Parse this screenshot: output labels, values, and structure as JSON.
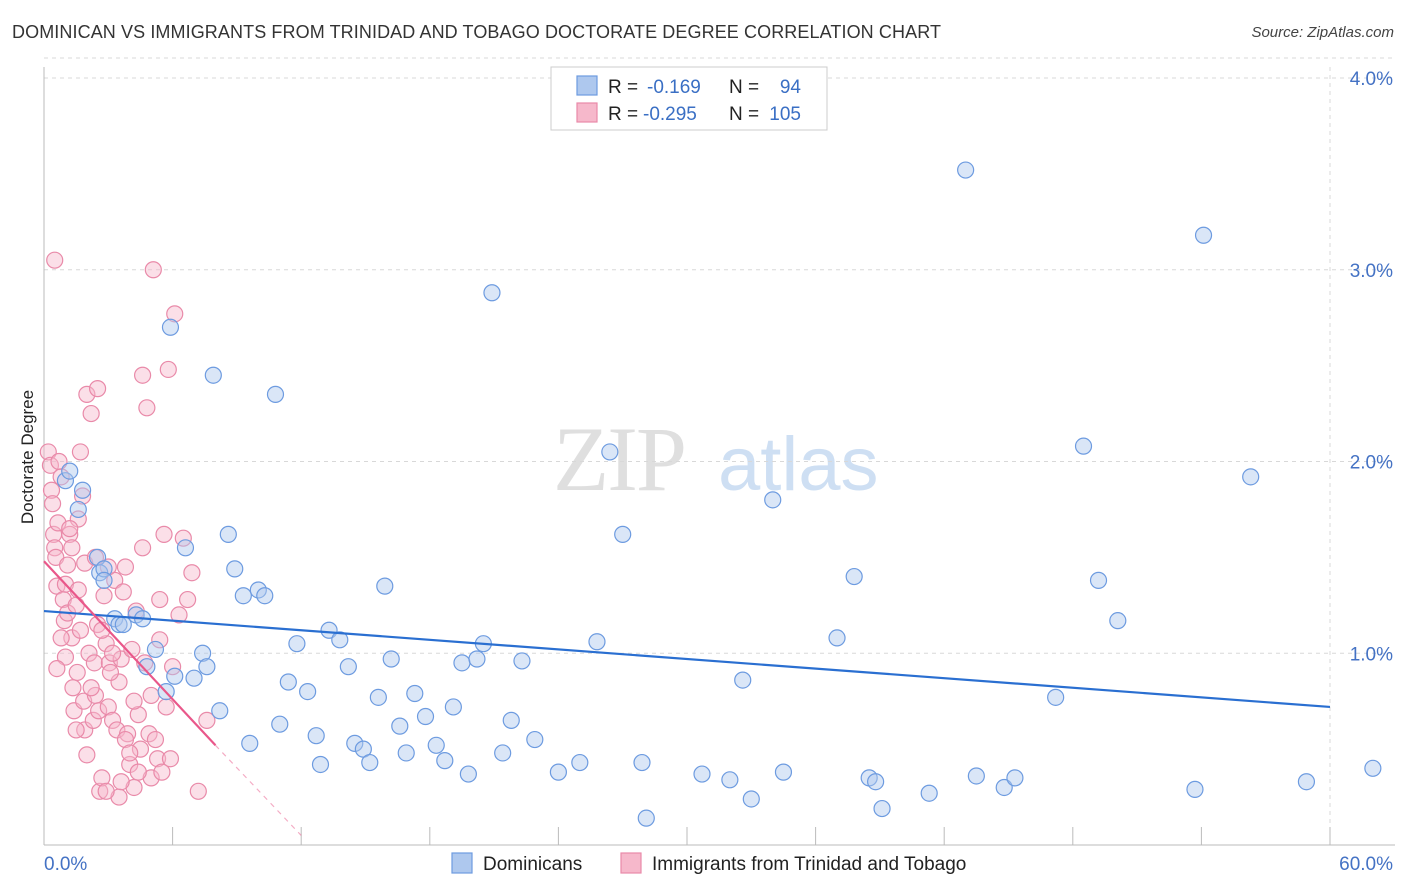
{
  "header": {
    "title": "DOMINICAN VS IMMIGRANTS FROM TRINIDAD AND TOBAGO DOCTORATE DEGREE CORRELATION CHART",
    "source": "Source: ZipAtlas.com"
  },
  "watermark": {
    "zip": "ZIP",
    "atlas": "atlas"
  },
  "colors": {
    "blue_fill": "#aec8ee",
    "blue_stroke": "#6d9be0",
    "blue_line": "#2a6fd1",
    "pink_fill": "#f6b8cb",
    "pink_stroke": "#e98aa9",
    "pink_line": "#e9578a",
    "grid": "#d8d8d8",
    "axis_text": "#4472c4"
  },
  "legend": {
    "rows": [
      {
        "r_label": "R =",
        "r_value": "-0.169",
        "n_label": "N =",
        "n_value": "94"
      },
      {
        "r_label": "R =",
        "r_value": "-0.295",
        "n_label": "N =",
        "n_value": "105"
      }
    ]
  },
  "chart_data": {
    "type": "scatter",
    "title": "DOMINICAN VS IMMIGRANTS FROM TRINIDAD AND TOBAGO DOCTORATE DEGREE CORRELATION CHART",
    "xlabel": "",
    "ylabel": "Doctorate Degree",
    "xlim": [
      0,
      60
    ],
    "ylim": [
      0,
      4.2
    ],
    "x_tick_labels": [
      "0.0%",
      "60.0%"
    ],
    "y_tick_labels": [
      "1.0%",
      "2.0%",
      "3.0%",
      "4.0%"
    ],
    "y_ticks": [
      1.0,
      2.0,
      3.0,
      4.0
    ],
    "legend_position": "top-center",
    "series": [
      {
        "name": "Dominicans",
        "r": -0.169,
        "n": 94,
        "trend": {
          "x": [
            0,
            60
          ],
          "y": [
            1.22,
            0.72
          ]
        },
        "points": [
          [
            1.0,
            1.9
          ],
          [
            1.2,
            1.95
          ],
          [
            1.6,
            1.75
          ],
          [
            1.8,
            1.85
          ],
          [
            2.5,
            1.5
          ],
          [
            2.6,
            1.42
          ],
          [
            2.8,
            1.44
          ],
          [
            2.8,
            1.38
          ],
          [
            3.3,
            1.18
          ],
          [
            3.5,
            1.15
          ],
          [
            3.7,
            1.15
          ],
          [
            4.3,
            1.2
          ],
          [
            4.6,
            1.18
          ],
          [
            4.8,
            0.93
          ],
          [
            5.2,
            1.02
          ],
          [
            5.7,
            0.8
          ],
          [
            5.9,
            2.7
          ],
          [
            6.1,
            0.88
          ],
          [
            6.6,
            1.55
          ],
          [
            7.0,
            0.87
          ],
          [
            7.4,
            1.0
          ],
          [
            7.6,
            0.93
          ],
          [
            7.9,
            2.45
          ],
          [
            8.2,
            0.7
          ],
          [
            8.6,
            1.62
          ],
          [
            8.9,
            1.44
          ],
          [
            9.3,
            1.3
          ],
          [
            9.6,
            0.53
          ],
          [
            10.0,
            1.33
          ],
          [
            10.3,
            1.3
          ],
          [
            10.8,
            2.35
          ],
          [
            11.0,
            0.63
          ],
          [
            11.4,
            0.85
          ],
          [
            11.8,
            1.05
          ],
          [
            12.3,
            0.8
          ],
          [
            12.7,
            0.57
          ],
          [
            12.9,
            0.42
          ],
          [
            13.3,
            1.12
          ],
          [
            13.8,
            1.07
          ],
          [
            14.2,
            0.93
          ],
          [
            14.5,
            0.53
          ],
          [
            14.9,
            0.5
          ],
          [
            15.2,
            0.43
          ],
          [
            15.6,
            0.77
          ],
          [
            15.9,
            1.35
          ],
          [
            16.2,
            0.97
          ],
          [
            16.6,
            0.62
          ],
          [
            16.9,
            0.48
          ],
          [
            17.3,
            0.79
          ],
          [
            17.8,
            0.67
          ],
          [
            18.3,
            0.52
          ],
          [
            18.7,
            0.44
          ],
          [
            19.1,
            0.72
          ],
          [
            19.5,
            0.95
          ],
          [
            19.8,
            0.37
          ],
          [
            20.2,
            0.97
          ],
          [
            20.5,
            1.05
          ],
          [
            20.9,
            2.88
          ],
          [
            21.4,
            0.48
          ],
          [
            21.8,
            0.65
          ],
          [
            22.3,
            0.96
          ],
          [
            22.9,
            0.55
          ],
          [
            24.0,
            0.38
          ],
          [
            25.0,
            0.43
          ],
          [
            25.8,
            1.06
          ],
          [
            26.4,
            2.05
          ],
          [
            27.0,
            1.62
          ],
          [
            27.9,
            0.43
          ],
          [
            28.1,
            0.14
          ],
          [
            30.7,
            0.37
          ],
          [
            32.0,
            0.34
          ],
          [
            32.6,
            0.86
          ],
          [
            33.0,
            0.24
          ],
          [
            34.0,
            1.8
          ],
          [
            34.5,
            0.38
          ],
          [
            37.0,
            1.08
          ],
          [
            37.8,
            1.4
          ],
          [
            38.5,
            0.35
          ],
          [
            38.8,
            0.33
          ],
          [
            39.1,
            0.19
          ],
          [
            41.3,
            0.27
          ],
          [
            43.0,
            3.52
          ],
          [
            43.5,
            0.36
          ],
          [
            44.8,
            0.3
          ],
          [
            45.3,
            0.35
          ],
          [
            47.2,
            0.77
          ],
          [
            48.5,
            2.08
          ],
          [
            49.2,
            1.38
          ],
          [
            50.1,
            1.17
          ],
          [
            53.7,
            0.29
          ],
          [
            54.1,
            3.18
          ],
          [
            56.3,
            1.92
          ],
          [
            58.9,
            0.33
          ],
          [
            62.0,
            0.4
          ]
        ]
      },
      {
        "name": "Immigrants from Trinidad and Tobago",
        "r": -0.295,
        "n": 105,
        "trend": {
          "x": [
            0,
            8.0
          ],
          "y": [
            1.48,
            0.52
          ],
          "dashed_to": {
            "x": 12.0,
            "y": 0.05
          }
        },
        "points": [
          [
            0.2,
            2.05
          ],
          [
            0.3,
            1.98
          ],
          [
            0.35,
            1.85
          ],
          [
            0.4,
            1.78
          ],
          [
            0.45,
            1.62
          ],
          [
            0.5,
            1.55
          ],
          [
            0.55,
            1.5
          ],
          [
            0.6,
            1.35
          ],
          [
            0.65,
            1.68
          ],
          [
            0.7,
            2.0
          ],
          [
            0.8,
            1.92
          ],
          [
            0.9,
            1.28
          ],
          [
            0.95,
            1.17
          ],
          [
            1.0,
            1.36
          ],
          [
            1.1,
            1.21
          ],
          [
            1.2,
            1.62
          ],
          [
            1.3,
            1.08
          ],
          [
            1.35,
            0.82
          ],
          [
            1.4,
            0.7
          ],
          [
            1.5,
            1.25
          ],
          [
            1.55,
            0.9
          ],
          [
            1.6,
            1.7
          ],
          [
            1.7,
            2.05
          ],
          [
            1.8,
            1.82
          ],
          [
            1.85,
            0.75
          ],
          [
            1.9,
            0.6
          ],
          [
            2.0,
            2.35
          ],
          [
            2.1,
            1.0
          ],
          [
            2.2,
            2.25
          ],
          [
            2.3,
            0.65
          ],
          [
            2.35,
            0.95
          ],
          [
            2.4,
            0.78
          ],
          [
            2.5,
            2.38
          ],
          [
            2.55,
            0.7
          ],
          [
            2.6,
            0.28
          ],
          [
            2.7,
            0.35
          ],
          [
            2.8,
            1.3
          ],
          [
            2.9,
            1.05
          ],
          [
            3.0,
            0.72
          ],
          [
            3.05,
            0.95
          ],
          [
            3.2,
            0.65
          ],
          [
            3.3,
            1.38
          ],
          [
            3.4,
            0.6
          ],
          [
            3.5,
            0.85
          ],
          [
            3.6,
            0.97
          ],
          [
            3.7,
            1.32
          ],
          [
            3.8,
            1.45
          ],
          [
            3.9,
            0.58
          ],
          [
            4.0,
            0.42
          ],
          [
            4.1,
            1.02
          ],
          [
            4.2,
            0.3
          ],
          [
            4.3,
            1.22
          ],
          [
            4.4,
            0.68
          ],
          [
            4.5,
            0.5
          ],
          [
            4.6,
            2.45
          ],
          [
            4.7,
            0.95
          ],
          [
            4.8,
            2.28
          ],
          [
            4.9,
            0.58
          ],
          [
            5.0,
            0.35
          ],
          [
            5.1,
            3.0
          ],
          [
            5.2,
            0.55
          ],
          [
            5.3,
            0.45
          ],
          [
            5.4,
            1.07
          ],
          [
            5.5,
            0.38
          ],
          [
            5.6,
            1.62
          ],
          [
            5.7,
            0.72
          ],
          [
            5.8,
            2.48
          ],
          [
            5.9,
            0.45
          ],
          [
            6.0,
            0.93
          ],
          [
            6.1,
            2.77
          ],
          [
            6.3,
            1.2
          ],
          [
            6.5,
            1.6
          ],
          [
            6.7,
            1.28
          ],
          [
            6.9,
            1.42
          ],
          [
            7.2,
            0.28
          ],
          [
            7.6,
            0.65
          ],
          [
            0.5,
            3.05
          ],
          [
            1.2,
            1.65
          ],
          [
            1.5,
            0.6
          ],
          [
            2.0,
            0.47
          ],
          [
            2.5,
            1.15
          ],
          [
            3.0,
            1.45
          ],
          [
            3.5,
            0.25
          ],
          [
            0.8,
            1.08
          ],
          [
            1.0,
            0.98
          ],
          [
            1.6,
            1.33
          ],
          [
            2.2,
            0.82
          ],
          [
            2.7,
            1.12
          ],
          [
            3.2,
            1.0
          ],
          [
            3.8,
            0.55
          ],
          [
            4.2,
            0.75
          ],
          [
            4.6,
            1.55
          ],
          [
            0.6,
            0.92
          ],
          [
            1.3,
            1.55
          ],
          [
            1.9,
            1.47
          ],
          [
            2.4,
            1.5
          ],
          [
            3.1,
            0.9
          ],
          [
            3.6,
            0.33
          ],
          [
            4.0,
            0.48
          ],
          [
            4.4,
            0.38
          ],
          [
            5.0,
            0.78
          ],
          [
            5.4,
            1.28
          ],
          [
            1.1,
            1.46
          ],
          [
            1.7,
            1.12
          ],
          [
            2.9,
            0.28
          ]
        ]
      }
    ]
  },
  "bottom_legend": [
    "Dominicans",
    "Immigrants from Trinidad and Tobago"
  ]
}
